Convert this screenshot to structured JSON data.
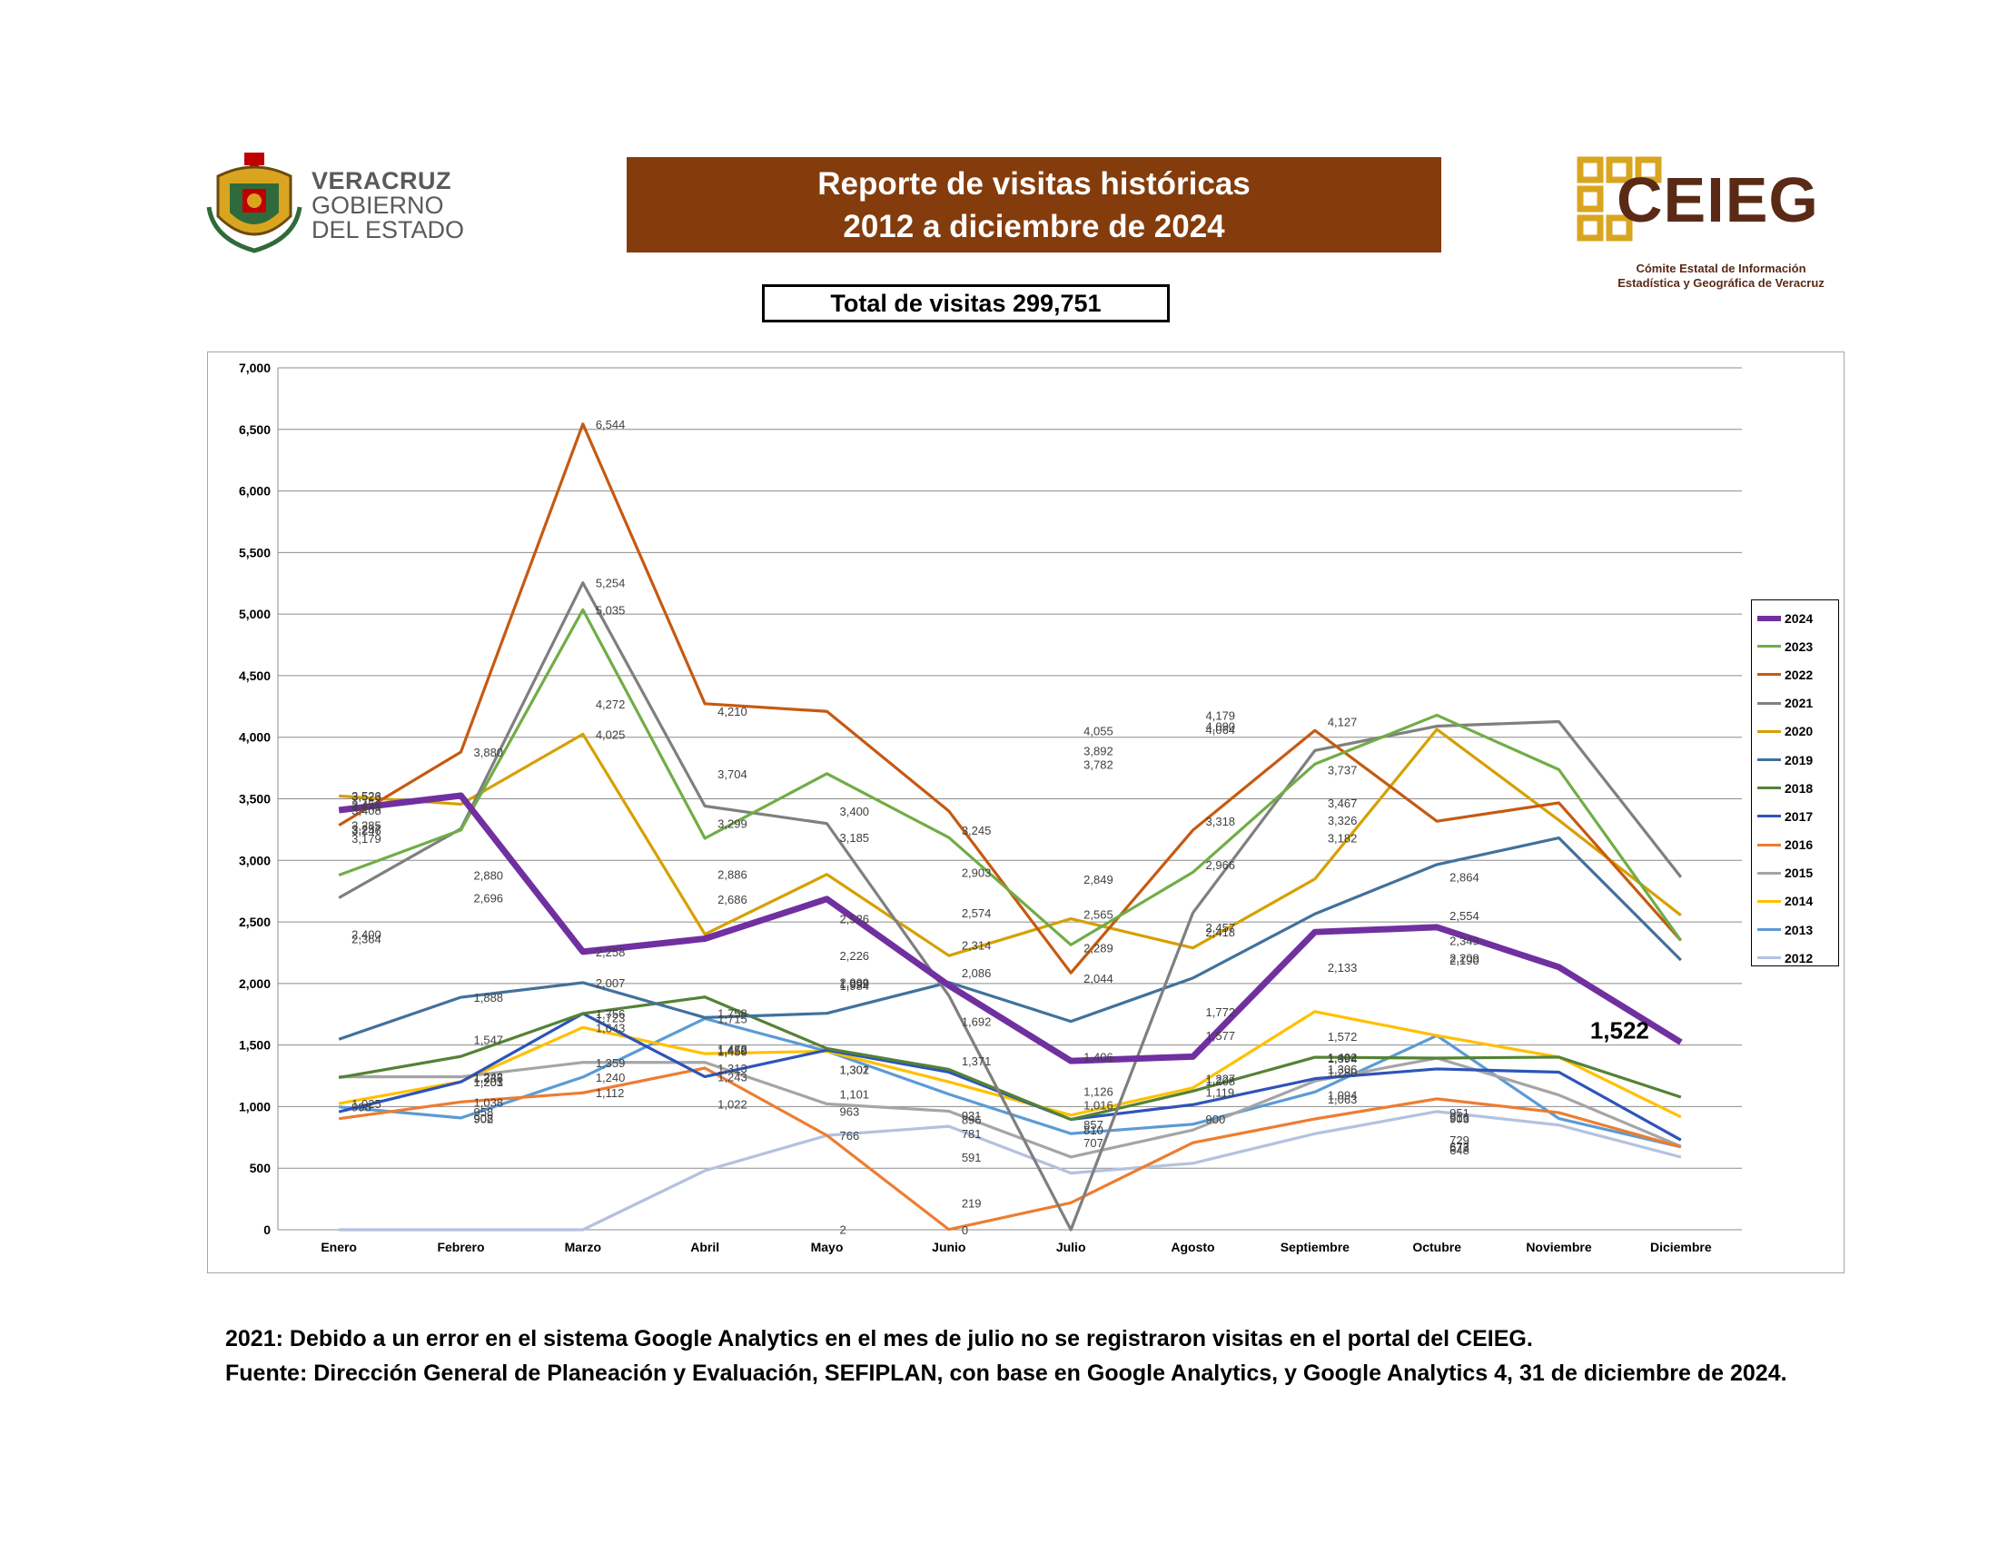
{
  "header": {
    "gov_name_line1": "VERACRUZ",
    "gov_name_line2": "GOBIERNO",
    "gov_name_line3": "DEL ESTADO",
    "title_line1": "Reporte de visitas históricas",
    "title_line2": "2012 a diciembre de 2024",
    "logo_word": "CEIEG",
    "logo_subtitle_line1": "Cómite Estatal de Información",
    "logo_subtitle_line2": "Estadística y Geográfica de Veracruz",
    "total_label": "Total de visitas 299,751"
  },
  "colors": {
    "title_bg": "#843c0c",
    "logo_gold": "#d9a520",
    "logo_brown": "#5a2a16",
    "gov_gray": "#5a5a5a"
  },
  "footnote": {
    "line1": "2021: Debido a un error en el sistema Google Analytics en el mes de julio no se registraron visitas en el portal del CEIEG.",
    "line2": "Fuente: Dirección General de Planeación y Evaluación, SEFIPLAN, con base en Google Analytics, y Google Analytics 4, 31 de diciembre de 2024."
  },
  "chart_data": {
    "type": "line",
    "title": "",
    "xlabel": "",
    "ylabel": "",
    "ylim": [
      0,
      7000
    ],
    "ytick_step": 500,
    "yticks": [
      "0",
      "500",
      "1,000",
      "1,500",
      "2,000",
      "2,500",
      "3,000",
      "3,500",
      "4,000",
      "4,500",
      "5,000",
      "5,500",
      "6,000",
      "6,500",
      "7,000"
    ],
    "grid": true,
    "legend_position": "right",
    "categories": [
      "Enero",
      "Febrero",
      "Marzo",
      "Abril",
      "Mayo",
      "Junio",
      "Julio",
      "Agosto",
      "Septiembre",
      "Octubre",
      "Noviembre",
      "Diciembre"
    ],
    "series": [
      {
        "name": "2024",
        "color": "#7030a0",
        "thick": true,
        "values": [
          3408,
          3526,
          2258,
          2364,
          2686,
          1984,
          1371,
          1406,
          2418,
          2457,
          2133,
          1522
        ]
      },
      {
        "name": "2023",
        "color": "#70ad47",
        "values": [
          2880,
          3246,
          5035,
          3179,
          3704,
          3185,
          2314,
          2903,
          3782,
          4179,
          3737,
          2349
        ]
      },
      {
        "name": "2022",
        "color": "#c55a11",
        "values": [
          3285,
          3880,
          6544,
          4272,
          4210,
          3400,
          2086,
          3245,
          4055,
          3318,
          3467,
          2349
        ]
      },
      {
        "name": "2021",
        "color": "#7f7f7f",
        "values": [
          2696,
          3257,
          5254,
          3441,
          3299,
          1901,
          0,
          2574,
          3892,
          4090,
          4127,
          2864
        ]
      },
      {
        "name": "2020",
        "color": "#d6a000",
        "values": [
          3523,
          3456,
          4025,
          2400,
          2886,
          2226,
          2526,
          2289,
          2849,
          4064,
          3326,
          2554
        ]
      },
      {
        "name": "2019",
        "color": "#41719c",
        "values": [
          1547,
          1888,
          2007,
          1723,
          1758,
          2009,
          1692,
          2044,
          2565,
          2966,
          3182,
          2190
        ]
      },
      {
        "name": "2018",
        "color": "#548235",
        "values": [
          1236,
          1408,
          1756,
          1890,
          1472,
          1302,
          896,
          1126,
          1401,
          1394,
          1402,
          1077
        ]
      },
      {
        "name": "2017",
        "color": "#2e54b8",
        "values": [
          958,
          1201,
          1756,
          1243,
          1459,
          1280,
          896,
          1016,
          1227,
          1306,
          1280,
          729
        ]
      },
      {
        "name": "2016",
        "color": "#ed7d31",
        "values": [
          902,
          1038,
          1112,
          1313,
          766,
          2,
          219,
          707,
          900,
          1063,
          951,
          673
        ]
      },
      {
        "name": "2015",
        "color": "#a5a5a5",
        "values": [
          1242,
          1242,
          1359,
          1359,
          1022,
          963,
          591,
          810,
          1208,
          1394,
          1094,
          677
        ]
      },
      {
        "name": "2014",
        "color": "#ffc000",
        "values": [
          1025,
          1203,
          1643,
          1430,
          1450,
          1201,
          931,
          1152,
          1772,
          1577,
          1402,
          916
        ]
      },
      {
        "name": "2013",
        "color": "#5b9bd5",
        "values": [
          998,
          908,
          1240,
          1715,
          1450,
          1101,
          781,
          857,
          1119,
          1577,
          903,
          673
        ]
      },
      {
        "name": "2012",
        "color": "#b4c1e0",
        "values": [
          0,
          0,
          0,
          480,
          766,
          840,
          460,
          540,
          780,
          960,
          850,
          590
        ]
      }
    ],
    "data_labels": [
      "3,408",
      "3,523",
      "3,526",
      "3,456",
      "3,285",
      "3,257",
      "3,246",
      "3,880",
      "2,880",
      "2,696",
      "1,547",
      "1,888",
      "1,236",
      "1,242",
      "1,203",
      "1,201",
      "1,038",
      "908",
      "958",
      "902",
      "998",
      "1,025",
      "6,544",
      "5,254",
      "5,035",
      "4,025",
      "2,258",
      "2,007",
      "1,756",
      "1,643",
      "1,359",
      "1,240",
      "1,112",
      "4,272",
      "3,441",
      "3,179",
      "2,400",
      "2,364",
      "1,723",
      "1,715",
      "1,313",
      "1,243",
      "4,210",
      "3,704",
      "3,299",
      "2,886",
      "2,686",
      "1,758",
      "1,472",
      "1,450",
      "1,459",
      "1,022",
      "766",
      "3,400",
      "3,185",
      "2,226",
      "2,009",
      "1,999",
      "1,984",
      "1,302",
      "1,301",
      "1,101",
      "963",
      "2",
      "2,526",
      "2,314",
      "2,086",
      "1,692",
      "1,371",
      "931",
      "896",
      "781",
      "591",
      "219",
      "0",
      "3,245",
      "2,903",
      "2,574",
      "2,289",
      "2,044",
      "1,406",
      "1,126",
      "1,016",
      "857",
      "810",
      "707",
      "4,055",
      "3,892",
      "3,782",
      "2,849",
      "2,565",
      "2,418",
      "1,772",
      "1,227",
      "1,208",
      "1,119",
      "900",
      "4,179",
      "4,090",
      "4,064",
      "3,318",
      "2,966",
      "2,457",
      "1,577",
      "1,572",
      "1,394",
      "1,306",
      "1,063",
      "4,127",
      "3,737",
      "3,467",
      "3,326",
      "3,182",
      "2,133",
      "1,402",
      "1,280",
      "1,094",
      "951",
      "903",
      "2,864",
      "2,554",
      "2,349",
      "2,209",
      "2,190",
      "916",
      "729",
      "677",
      "673",
      "648"
    ],
    "highlight_label": "1,522"
  }
}
